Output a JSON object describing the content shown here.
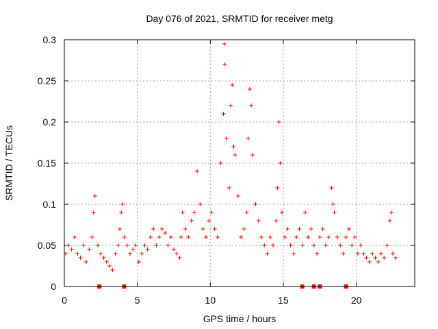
{
  "chart_data": {
    "type": "scatter",
    "title": "Day 076 of 2021, SRMTID for receiver metg",
    "xlabel": "GPS time / hours",
    "ylabel": "SRMTID / TECUs",
    "xlim": [
      0,
      24
    ],
    "ylim": [
      0,
      0.3
    ],
    "xticks": [
      0,
      5,
      10,
      15,
      20
    ],
    "xtick_labels": [
      "0",
      "5",
      "10",
      "15",
      "20"
    ],
    "yticks": [
      0,
      0.05,
      0.1,
      0.15,
      0.2,
      0.25,
      0.3
    ],
    "ytick_labels": [
      "0",
      "0.05",
      "0.1",
      "0.15",
      "0.2",
      "0.25",
      "0.3"
    ],
    "grid": true,
    "marker": "+",
    "color": "#ff0000",
    "series": [
      {
        "name": "SRMTID",
        "x": [
          0.1,
          0.3,
          0.5,
          0.7,
          0.9,
          1.1,
          1.3,
          1.5,
          1.7,
          1.9,
          2.0,
          2.1,
          2.3,
          2.5,
          2.7,
          2.9,
          3.1,
          3.3,
          3.5,
          3.7,
          3.8,
          3.9,
          4.0,
          4.1,
          4.3,
          4.5,
          4.7,
          4.9,
          5.1,
          5.3,
          5.5,
          5.7,
          5.9,
          6.1,
          6.3,
          6.5,
          6.7,
          6.9,
          7.1,
          7.3,
          7.5,
          7.7,
          7.9,
          8.0,
          8.1,
          8.3,
          8.5,
          8.7,
          8.9,
          9.1,
          9.3,
          9.5,
          9.7,
          9.9,
          10.1,
          10.3,
          10.5,
          10.7,
          10.9,
          10.95,
          11.0,
          11.1,
          11.3,
          11.4,
          11.5,
          11.6,
          11.7,
          11.9,
          12.1,
          12.3,
          12.5,
          12.6,
          12.7,
          12.8,
          12.9,
          13.1,
          13.3,
          13.5,
          13.7,
          13.9,
          14.1,
          14.3,
          14.5,
          14.6,
          14.7,
          14.8,
          14.9,
          15.1,
          15.3,
          15.5,
          15.7,
          15.9,
          16.1,
          16.3,
          16.5,
          16.7,
          16.9,
          17.1,
          17.3,
          17.5,
          17.7,
          17.9,
          18.1,
          18.3,
          18.4,
          18.5,
          18.7,
          18.9,
          19.1,
          19.3,
          19.5,
          19.7,
          19.9,
          20.1,
          20.3,
          20.5,
          20.7,
          20.9,
          21.1,
          21.3,
          21.5,
          21.7,
          21.9,
          22.1,
          22.3,
          22.4,
          22.5,
          22.7
        ],
        "y": [
          0.04,
          0.05,
          0.045,
          0.06,
          0.04,
          0.035,
          0.05,
          0.03,
          0.045,
          0.06,
          0.09,
          0.11,
          0.05,
          0.04,
          0.035,
          0.03,
          0.025,
          0.02,
          0.04,
          0.05,
          0.07,
          0.09,
          0.1,
          0.06,
          0.05,
          0.04,
          0.045,
          0.05,
          0.03,
          0.04,
          0.05,
          0.045,
          0.06,
          0.07,
          0.05,
          0.06,
          0.07,
          0.065,
          0.05,
          0.06,
          0.045,
          0.04,
          0.035,
          0.06,
          0.09,
          0.07,
          0.06,
          0.08,
          0.09,
          0.14,
          0.1,
          0.07,
          0.06,
          0.08,
          0.09,
          0.07,
          0.06,
          0.15,
          0.21,
          0.295,
          0.27,
          0.18,
          0.12,
          0.22,
          0.245,
          0.17,
          0.16,
          0.11,
          0.06,
          0.07,
          0.09,
          0.18,
          0.24,
          0.22,
          0.16,
          0.1,
          0.08,
          0.06,
          0.05,
          0.04,
          0.06,
          0.05,
          0.08,
          0.12,
          0.2,
          0.15,
          0.09,
          0.06,
          0.07,
          0.05,
          0.04,
          0.06,
          0.07,
          0.05,
          0.09,
          0.06,
          0.07,
          0.05,
          0.04,
          0.06,
          0.07,
          0.05,
          0.06,
          0.12,
          0.1,
          0.09,
          0.06,
          0.05,
          0.04,
          0.06,
          0.07,
          0.05,
          0.06,
          0.04,
          0.05,
          0.04,
          0.035,
          0.03,
          0.04,
          0.035,
          0.03,
          0.04,
          0.035,
          0.05,
          0.08,
          0.09,
          0.04,
          0.035
        ]
      }
    ],
    "zero_markers_x": [
      2.4,
      4.1,
      16.3,
      17.1,
      17.5,
      19.3
    ]
  }
}
